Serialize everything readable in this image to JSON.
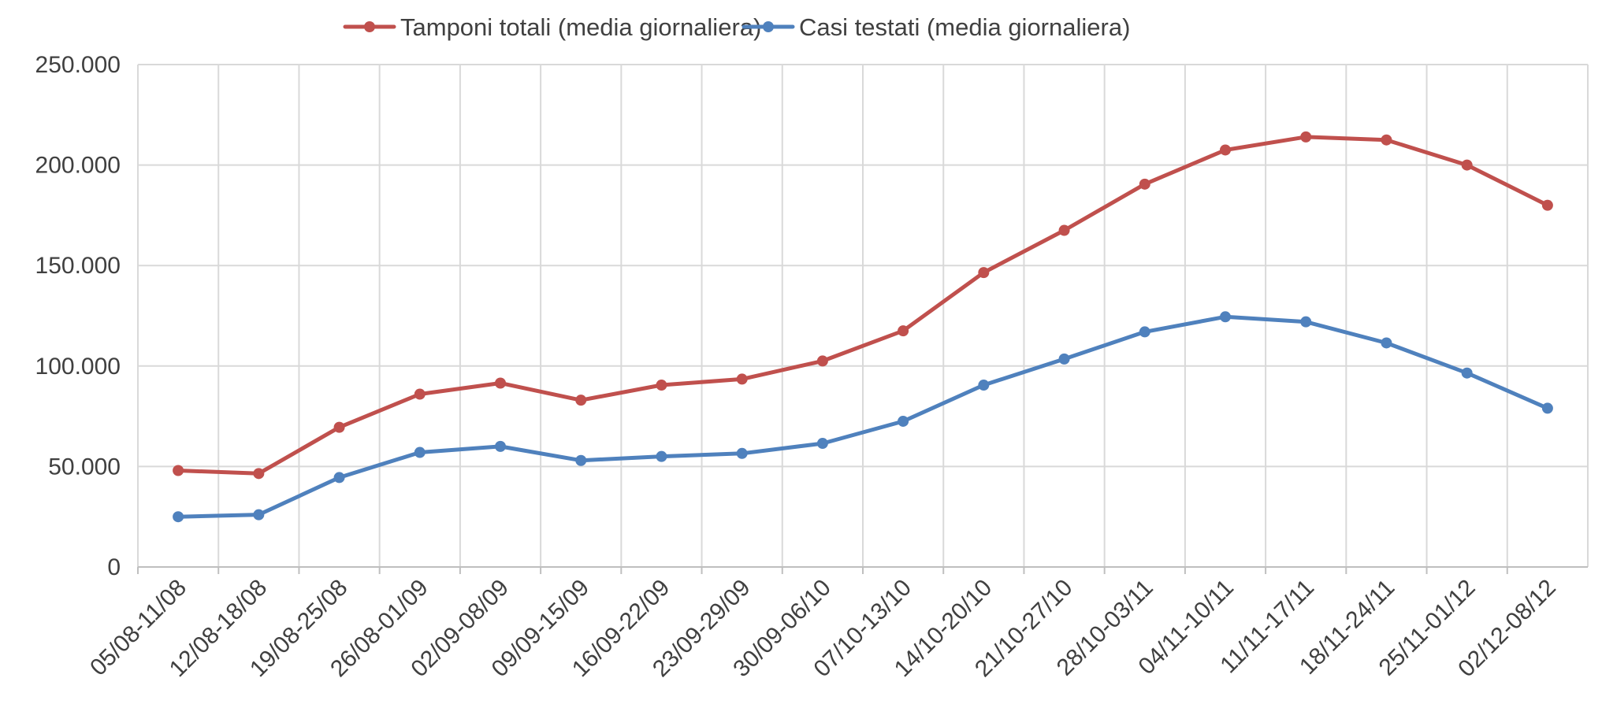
{
  "chart_data": {
    "type": "line",
    "title": "",
    "xlabel": "",
    "ylabel": "",
    "ylim": [
      0,
      250000
    ],
    "yticks": [
      0,
      50000,
      100000,
      150000,
      200000,
      250000
    ],
    "ytick_labels": [
      "0",
      "50.000",
      "100.000",
      "150.000",
      "200.000",
      "250.000"
    ],
    "grid": true,
    "legend_position": "top-center",
    "categories": [
      "05/08-11/08",
      "12/08-18/08",
      "19/08-25/08",
      "26/08-01/09",
      "02/09-08/09",
      "09/09-15/09",
      "16/09-22/09",
      "23/09-29/09",
      "30/09-06/10",
      "07/10-13/10",
      "14/10-20/10",
      "21/10-27/10",
      "28/10-03/11",
      "04/11-10/11",
      "11/11-17/11",
      "18/11-24/11",
      "25/11-01/12",
      "02/12-08/12"
    ],
    "series": [
      {
        "name": "Tamponi totali (media giornaliera)",
        "color": "#c0504d",
        "values": [
          48000,
          46500,
          69500,
          86000,
          91500,
          83000,
          90500,
          93500,
          102500,
          117500,
          146500,
          167500,
          190500,
          207500,
          214000,
          212500,
          200000,
          180000
        ]
      },
      {
        "name": "Casi testati (media giornaliera)",
        "color": "#4f81bd",
        "values": [
          25000,
          26000,
          44500,
          57000,
          60000,
          53000,
          55000,
          56500,
          61500,
          72500,
          90500,
          103500,
          117000,
          124500,
          122000,
          111500,
          96500,
          79000
        ]
      }
    ]
  }
}
